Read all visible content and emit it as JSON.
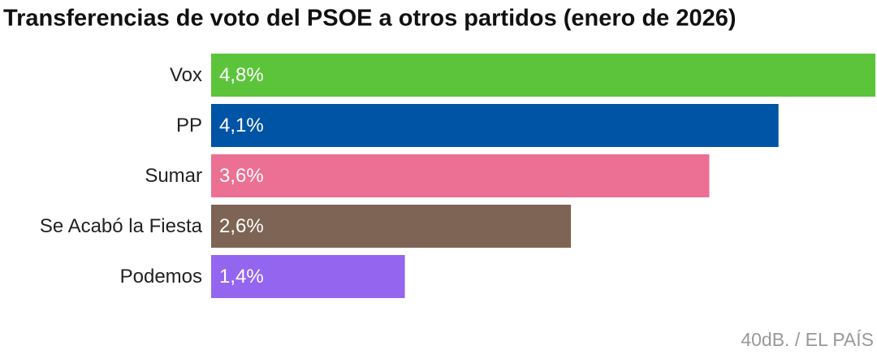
{
  "chart_data": {
    "type": "bar",
    "title": "Transferencias de voto del PSOE a otros partidos (enero de 2026)",
    "categories": [
      "Vox",
      "PP",
      "Sumar",
      "Se Acabó la Fiesta",
      "Podemos"
    ],
    "values": [
      4.8,
      4.1,
      3.6,
      2.6,
      1.4
    ],
    "value_labels": [
      "4,8%",
      "4,1%",
      "3,6%",
      "2,6%",
      "1,4%"
    ],
    "colors": [
      "#5cc43b",
      "#0054a6",
      "#ec6f94",
      "#7d6454",
      "#9466f0"
    ],
    "source": "40dB. / EL PAÍS"
  }
}
